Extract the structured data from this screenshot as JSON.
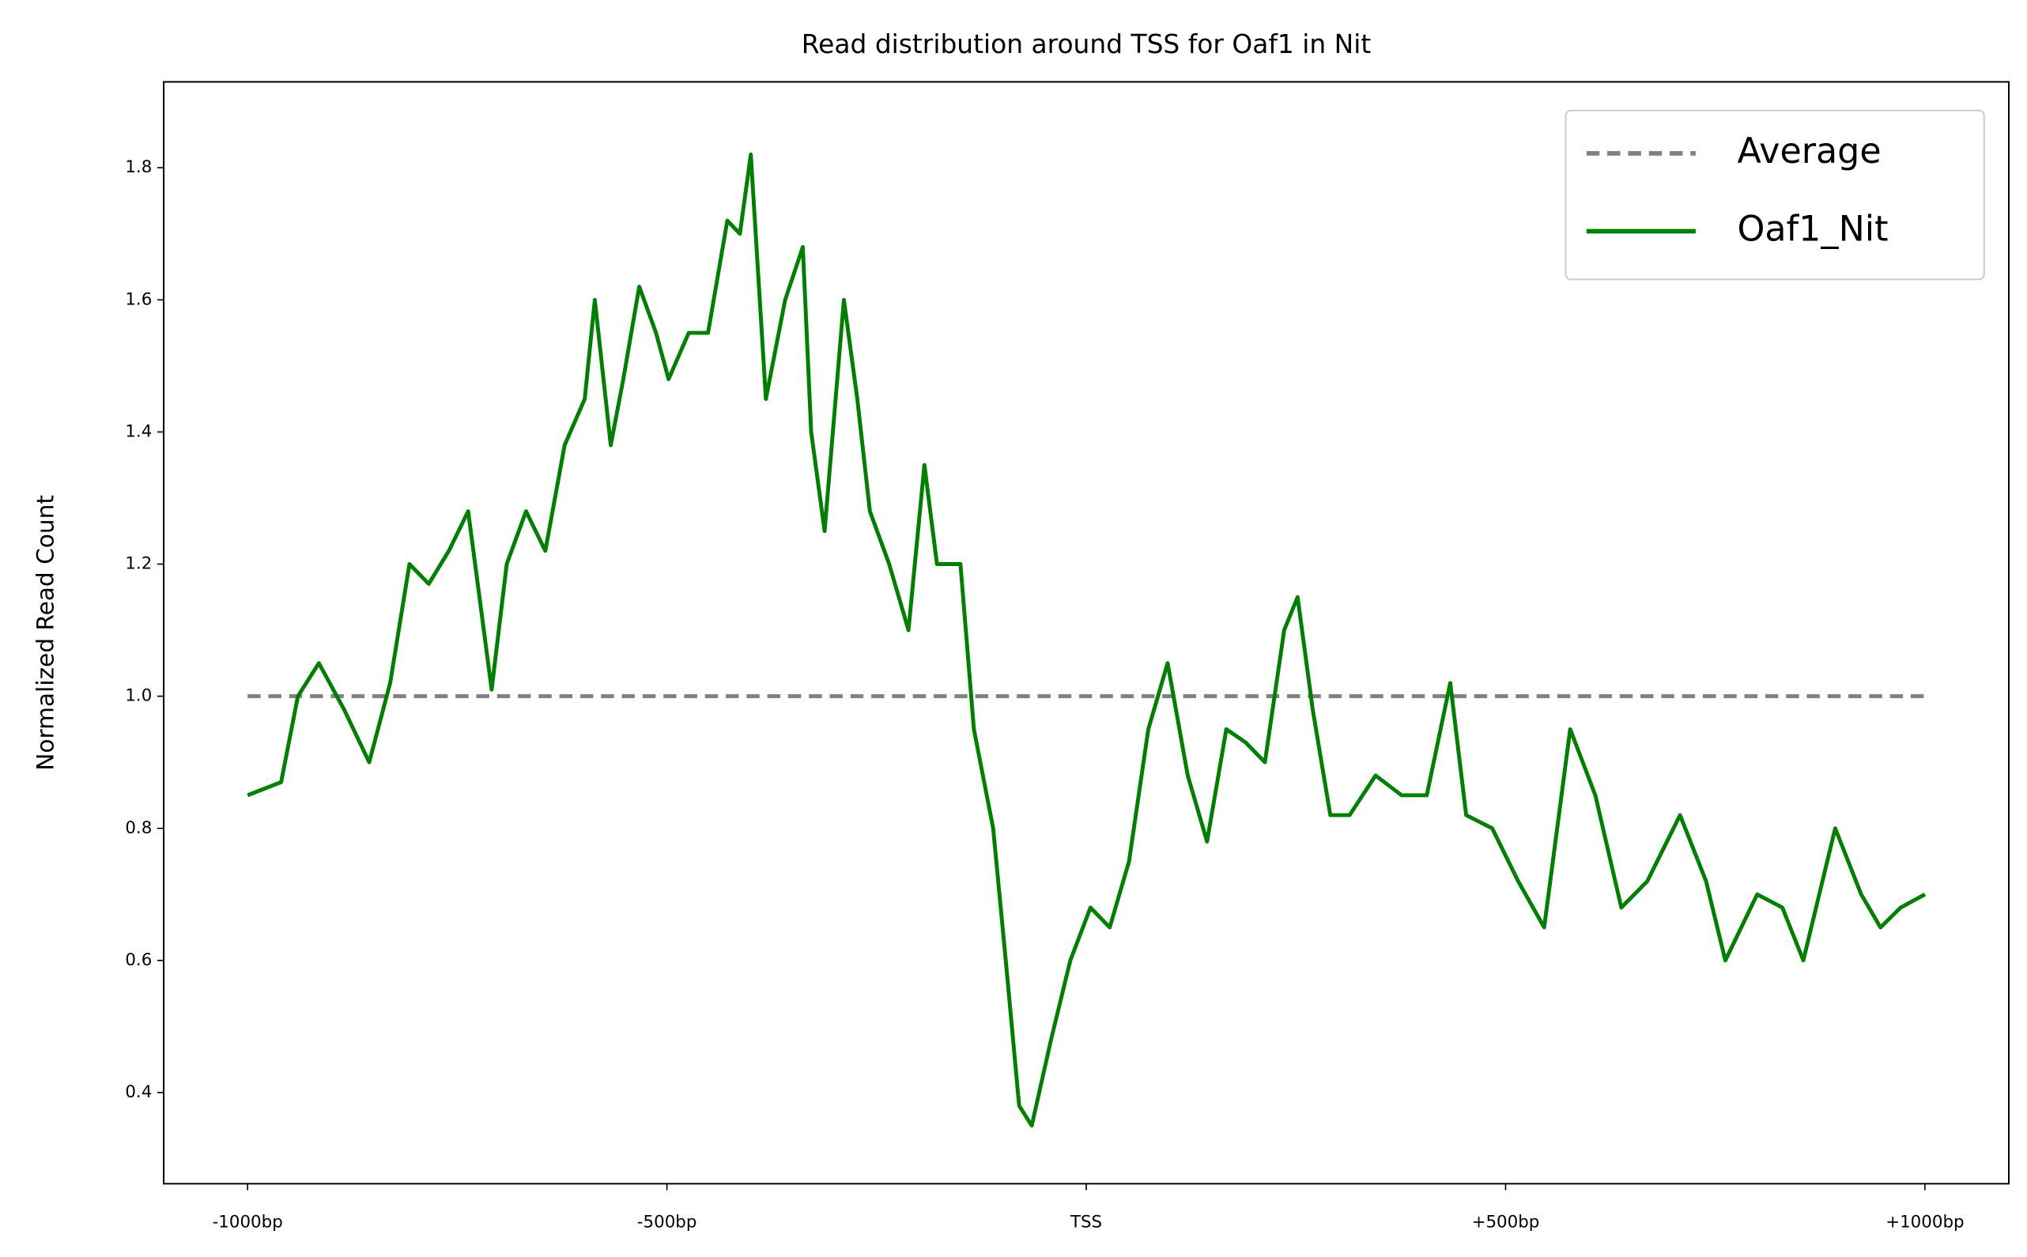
{
  "chart_data": {
    "type": "line",
    "title": "Read distribution around TSS for Oaf1 in Nit",
    "ylabel": "Normalized Read Count",
    "xlim": [
      -1100,
      1100
    ],
    "ylim": [
      0.262,
      1.93
    ],
    "xticks": [
      {
        "value": -1000,
        "label": "-1000bp"
      },
      {
        "value": -500,
        "label": "-500bp"
      },
      {
        "value": 0,
        "label": "TSS"
      },
      {
        "value": 500,
        "label": "+500bp"
      },
      {
        "value": 1000,
        "label": "+1000bp"
      }
    ],
    "yticks": [
      0.4,
      0.6,
      0.8,
      1.0,
      1.2,
      1.4,
      1.6,
      1.8
    ],
    "grid": false,
    "legend": "upper right",
    "series": [
      {
        "name": "Average",
        "color": "#808080",
        "dash": true,
        "x": [
          -1000,
          1000
        ],
        "values": [
          1.0,
          1.0
        ]
      },
      {
        "name": "Oaf1_Nit",
        "color": "#008000",
        "dash": false,
        "x": [
          -1000,
          -960,
          -940,
          -915,
          -885,
          -855,
          -830,
          -807,
          -784,
          -760,
          -737,
          -709,
          -691,
          -668,
          -645,
          -622,
          -598,
          -586,
          -567,
          -552,
          -533,
          -513,
          -498,
          -474,
          -451,
          -428,
          -413,
          -400,
          -382,
          -359,
          -338,
          -328,
          -312,
          -289,
          -273,
          -258,
          -235,
          -212,
          -193,
          -178,
          -150,
          -134,
          -111,
          -96,
          -80,
          -65,
          -42,
          -19,
          5,
          28,
          51,
          74,
          97,
          121,
          144,
          167,
          190,
          213,
          236,
          252,
          270,
          291,
          314,
          345,
          376,
          406,
          434,
          453,
          484,
          515,
          546,
          577,
          607,
          638,
          669,
          708,
          739,
          762,
          800,
          830,
          855,
          893,
          924,
          947,
          971,
          1000
        ],
        "values": [
          0.85,
          0.87,
          1.0,
          1.05,
          0.98,
          0.9,
          1.02,
          1.2,
          1.17,
          1.22,
          1.28,
          1.01,
          1.2,
          1.28,
          1.22,
          1.38,
          1.45,
          1.6,
          1.38,
          1.48,
          1.62,
          1.55,
          1.48,
          1.55,
          1.55,
          1.72,
          1.7,
          1.82,
          1.45,
          1.6,
          1.68,
          1.4,
          1.25,
          1.6,
          1.45,
          1.28,
          1.2,
          1.1,
          1.35,
          1.2,
          1.2,
          0.95,
          0.8,
          0.6,
          0.38,
          0.35,
          0.48,
          0.6,
          0.68,
          0.65,
          0.75,
          0.95,
          1.05,
          0.88,
          0.78,
          0.95,
          0.93,
          0.9,
          1.1,
          1.15,
          0.98,
          0.82,
          0.82,
          0.88,
          0.85,
          0.85,
          1.02,
          0.82,
          0.8,
          0.72,
          0.65,
          0.95,
          0.85,
          0.68,
          0.72,
          0.82,
          0.72,
          0.6,
          0.7,
          0.68,
          0.6,
          0.8,
          0.7,
          0.65,
          0.68,
          0.7
        ]
      }
    ]
  }
}
